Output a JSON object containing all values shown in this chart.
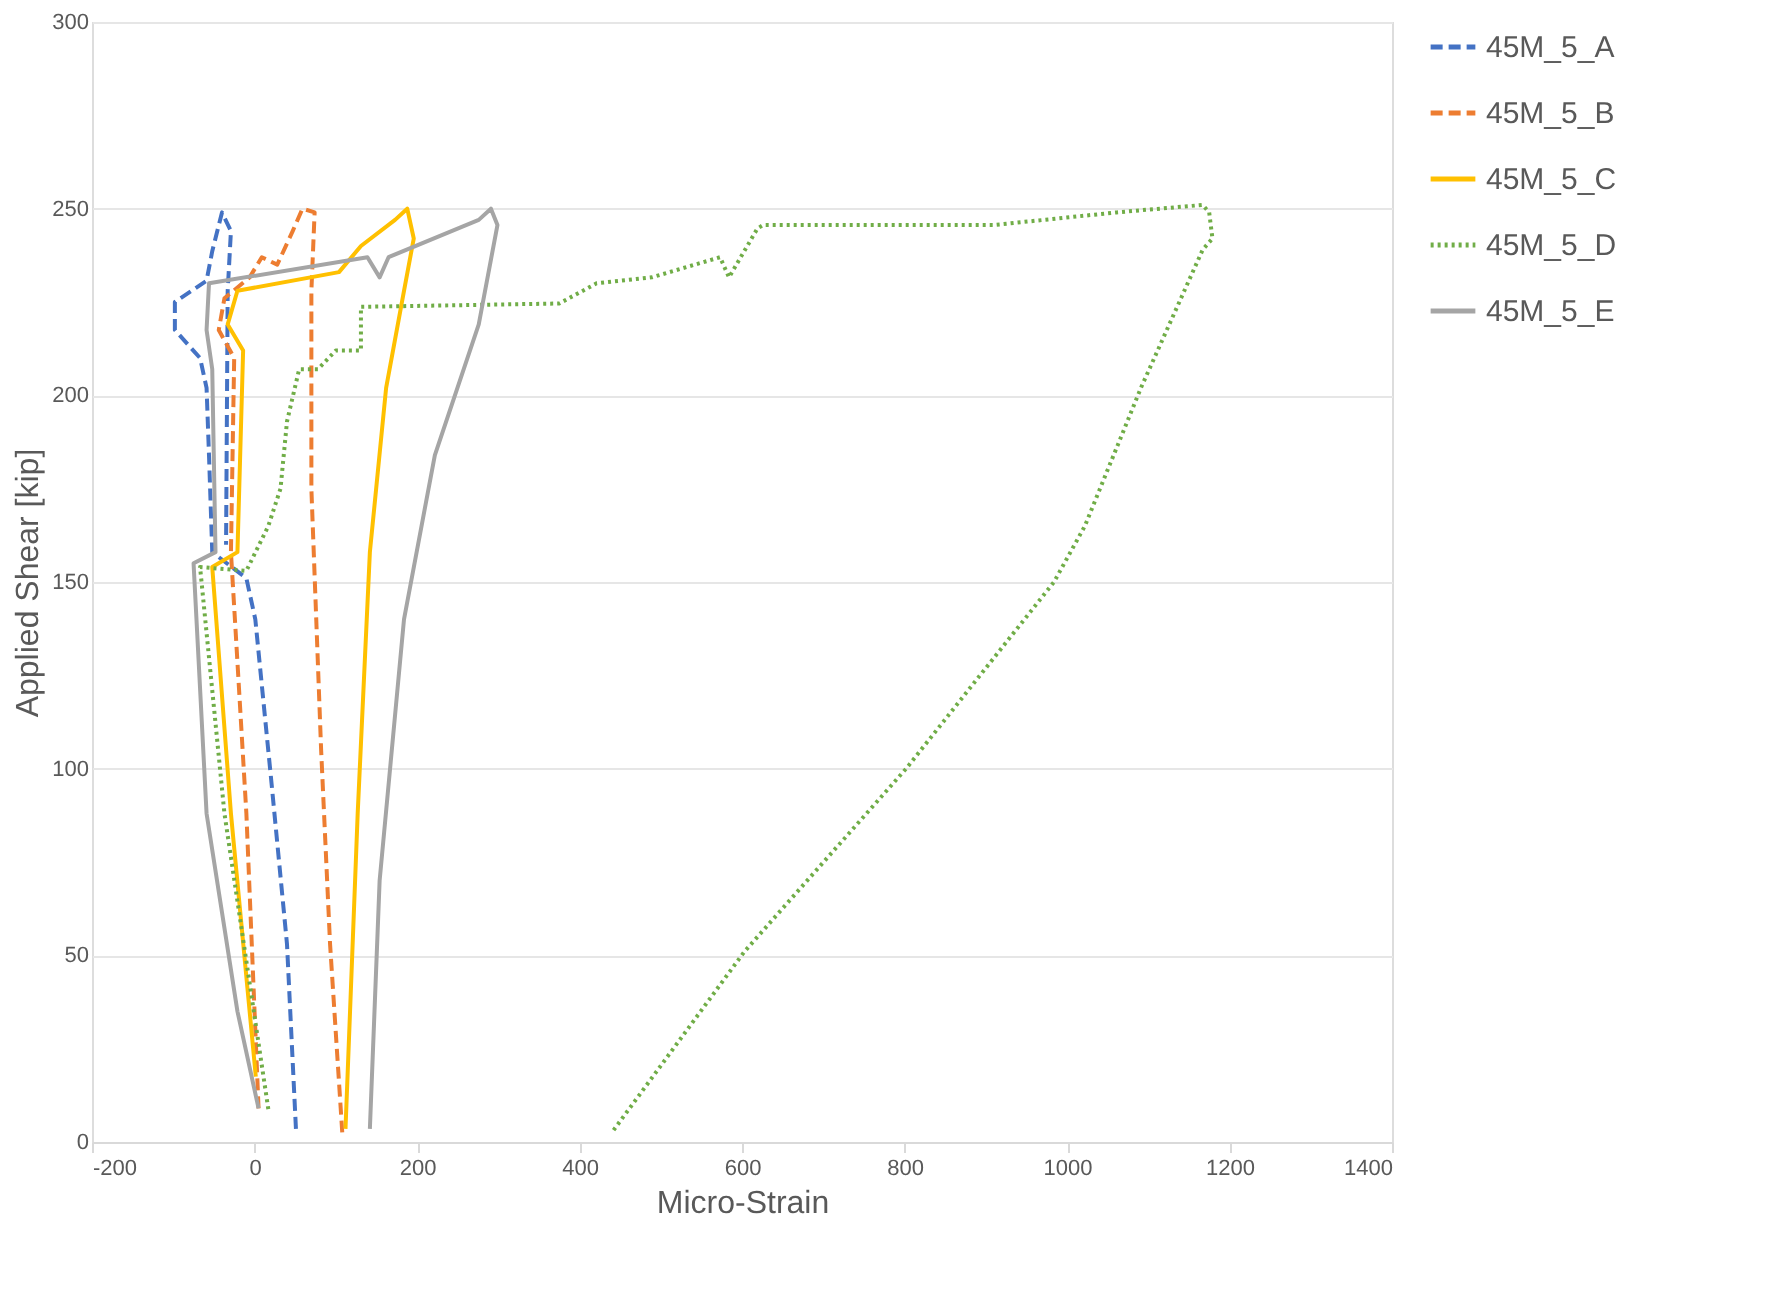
{
  "chart_data": {
    "type": "line",
    "xlabel": "Micro-Strain",
    "ylabel": "Applied Shear [kip]",
    "xlim": [
      -200,
      1400
    ],
    "xticks": [
      -200,
      0,
      200,
      400,
      600,
      800,
      1000,
      1200,
      1400
    ],
    "ylim": [
      0,
      300
    ],
    "yticks": [
      0,
      50,
      100,
      150,
      200,
      250,
      300
    ],
    "grid": "y",
    "legend": "right",
    "marker": "none",
    "series": [
      {
        "name": "45M_5_A",
        "color": "#4472c4",
        "line_style": "dashed",
        "x": [
          51,
          40,
          21,
          1,
          -10,
          -52,
          -56,
          -59,
          -67,
          -98,
          -98,
          -59,
          -52,
          -40,
          -29,
          -33,
          -35
        ],
        "values": [
          3.5,
          53,
          96,
          140,
          151,
          158,
          184,
          202,
          210,
          217.5,
          225,
          230.7,
          238.6,
          249,
          244,
          228,
          160
        ]
      },
      {
        "name": "45M_5_B",
        "color": "#ed7d31",
        "line_style": "dashed",
        "x": [
          5,
          -10,
          -29,
          -25,
          -44,
          -37,
          -6,
          9,
          28,
          47,
          59,
          74,
          70,
          70,
          82,
          93,
          108
        ],
        "values": [
          9,
          88,
          158,
          210,
          217.5,
          226,
          231.6,
          237,
          235,
          244,
          250,
          249,
          228,
          175,
          105,
          53,
          2.6
        ]
      },
      {
        "name": "45M_5_C",
        "color": "#ffc000",
        "line_style": "solid",
        "x": [
          1.6,
          -29,
          -52,
          -21,
          -14,
          -33,
          -21,
          104,
          131,
          173,
          188,
          196,
          184,
          162,
          142,
          127,
          112
        ],
        "values": [
          17.5,
          88,
          154,
          158,
          212,
          219,
          228,
          233,
          240,
          247,
          250,
          242,
          228,
          202,
          158,
          88,
          3.5
        ]
      },
      {
        "name": "45M_5_D",
        "color": "#70ad47",
        "line_style": "dotted",
        "x": [
          17,
          -37,
          -67,
          -10,
          17,
          32,
          40,
          55,
          78,
          100,
          131,
          131,
          375,
          421,
          489,
          573,
          584,
          619,
          626,
          909,
          1061,
          1167,
          1175,
          1179,
          1167,
          1091,
          1022,
          984,
          802,
          603,
          440
        ],
        "values": [
          8.8,
          88,
          154,
          153,
          165,
          175,
          193,
          207,
          207,
          212,
          212,
          223.7,
          224.6,
          230,
          231.6,
          237,
          231.6,
          244.7,
          245.6,
          245.6,
          249,
          251,
          249,
          242,
          239,
          202,
          165,
          150,
          100,
          51,
          2.6
        ]
      },
      {
        "name": "45M_5_E",
        "color": "#a5a5a5",
        "line_style": "solid",
        "x": [
          5,
          -21,
          -59,
          -75,
          -48,
          -52,
          -59,
          -56,
          139,
          154,
          165,
          276,
          291,
          299,
          276,
          222,
          184,
          154,
          142
        ],
        "values": [
          9,
          35,
          88,
          155,
          158,
          207,
          217.5,
          230,
          237,
          231.6,
          237,
          247,
          250,
          245.6,
          219,
          184,
          140,
          70,
          3.5
        ]
      }
    ]
  }
}
